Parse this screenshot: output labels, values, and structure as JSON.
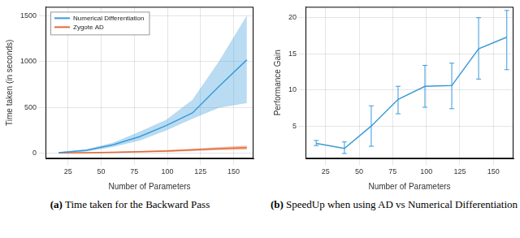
{
  "chart_data": [
    {
      "type": "line",
      "title": "(a) Time taken for the Backward Pass",
      "x_label": "Number of Parameters",
      "y_label": "Time taken (in seconds)",
      "x": [
        18,
        39,
        59,
        79,
        99,
        119,
        139,
        160
      ],
      "series": [
        {
          "name": "Numerical Differentiation",
          "color": "#3a9ad9",
          "values": [
            5,
            30,
            90,
            180,
            300,
            440,
            730,
            1020
          ],
          "lower": [
            3,
            20,
            70,
            140,
            250,
            380,
            500,
            550
          ],
          "upper": [
            8,
            40,
            110,
            230,
            360,
            580,
            1000,
            1500
          ]
        },
        {
          "name": "Zygote AD",
          "color": "#e26a3a",
          "values": [
            1,
            3,
            8,
            15,
            22,
            35,
            48,
            60
          ],
          "lower": [
            0,
            2,
            5,
            10,
            15,
            25,
            35,
            40
          ],
          "upper": [
            2,
            5,
            11,
            20,
            30,
            45,
            62,
            80
          ]
        }
      ],
      "xlim": [
        8,
        165
      ],
      "xticks": [
        25,
        50,
        75,
        100,
        125,
        150
      ],
      "ylim": [
        -60,
        1600
      ],
      "yticks": [
        0,
        500,
        1000,
        1500
      ],
      "grid": true,
      "legend": "upper left"
    },
    {
      "type": "line",
      "title": "(b) SpeedUp when using AD vs Numerical Differentiation",
      "x_label": "Number of Parameters",
      "y_label": "Performance Gain",
      "x": [
        18,
        39,
        59,
        79,
        99,
        119,
        139,
        160
      ],
      "series": [
        {
          "name": "Performance Gain",
          "color": "#3a9ad9",
          "values": [
            2.6,
            1.9,
            5.0,
            8.7,
            10.5,
            10.6,
            15.7,
            17.3
          ],
          "lower": [
            2.3,
            1.2,
            2.2,
            6.7,
            7.6,
            7.4,
            11.5,
            12.8
          ],
          "upper": [
            3.0,
            2.8,
            7.8,
            10.5,
            13.4,
            13.7,
            20.0,
            21.0
          ]
        }
      ],
      "xlim": [
        10,
        165
      ],
      "xticks": [
        25,
        50,
        75,
        100,
        125,
        150
      ],
      "ylim": [
        0.5,
        21.5
      ],
      "yticks": [
        5,
        10,
        15,
        20
      ],
      "grid": true
    }
  ]
}
